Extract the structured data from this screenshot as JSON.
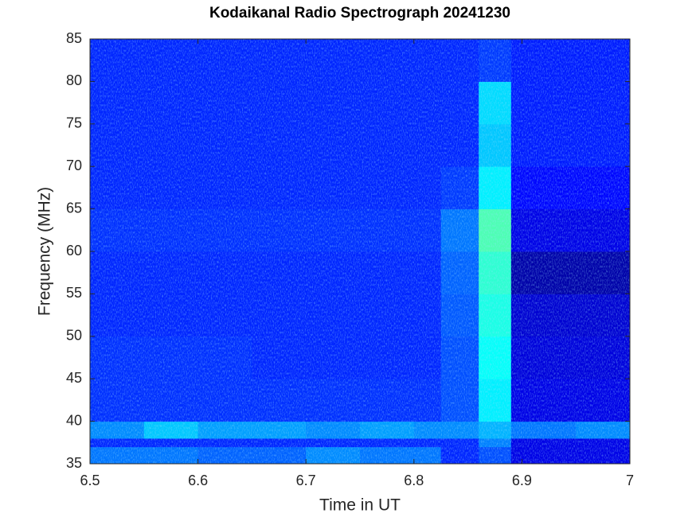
{
  "chart_data": {
    "type": "heatmap",
    "title": "Kodaikanal Radio Spectrograph  20241230",
    "x_label": "Time in UT",
    "y_label": "Frequency (MHz)",
    "xlim": [
      6.5,
      7
    ],
    "ylim": [
      35,
      85
    ],
    "xticks": [
      6.5,
      6.6,
      6.7,
      6.8,
      6.9,
      7
    ],
    "yticks": [
      35,
      40,
      45,
      50,
      55,
      60,
      65,
      70,
      75,
      80,
      85
    ],
    "colormap": "jet",
    "clim": [
      0,
      1
    ],
    "x_edges": [
      6.5,
      6.55,
      6.6,
      6.65,
      6.7,
      6.75,
      6.8,
      6.825,
      6.86,
      6.89,
      6.95,
      7
    ],
    "y_edges": [
      35,
      37,
      38,
      40,
      45,
      50,
      55,
      60,
      65,
      70,
      75,
      80,
      85
    ],
    "z": [
      [
        0.24,
        0.24,
        0.22,
        0.22,
        0.26,
        0.24,
        0.24,
        0.16,
        0.2,
        0.1,
        0.1
      ],
      [
        0.16,
        0.16,
        0.16,
        0.16,
        0.16,
        0.16,
        0.16,
        0.16,
        0.25,
        0.1,
        0.1
      ],
      [
        0.26,
        0.32,
        0.28,
        0.28,
        0.26,
        0.28,
        0.26,
        0.26,
        0.3,
        0.24,
        0.26
      ],
      [
        0.17,
        0.17,
        0.17,
        0.17,
        0.17,
        0.17,
        0.17,
        0.2,
        0.36,
        0.1,
        0.1
      ],
      [
        0.17,
        0.17,
        0.17,
        0.16,
        0.16,
        0.16,
        0.16,
        0.2,
        0.38,
        0.09,
        0.09
      ],
      [
        0.16,
        0.16,
        0.16,
        0.16,
        0.16,
        0.16,
        0.16,
        0.21,
        0.4,
        0.08,
        0.08
      ],
      [
        0.16,
        0.16,
        0.16,
        0.16,
        0.16,
        0.16,
        0.16,
        0.22,
        0.42,
        0.04,
        0.04
      ],
      [
        0.17,
        0.17,
        0.17,
        0.17,
        0.17,
        0.17,
        0.17,
        0.24,
        0.45,
        0.1,
        0.1
      ],
      [
        0.16,
        0.16,
        0.16,
        0.16,
        0.16,
        0.16,
        0.16,
        0.18,
        0.36,
        0.13,
        0.13
      ],
      [
        0.16,
        0.16,
        0.16,
        0.16,
        0.16,
        0.16,
        0.16,
        0.16,
        0.32,
        0.15,
        0.15
      ],
      [
        0.16,
        0.16,
        0.16,
        0.16,
        0.16,
        0.16,
        0.16,
        0.16,
        0.34,
        0.15,
        0.15
      ],
      [
        0.16,
        0.16,
        0.16,
        0.16,
        0.16,
        0.16,
        0.16,
        0.16,
        0.18,
        0.15,
        0.15
      ]
    ]
  }
}
